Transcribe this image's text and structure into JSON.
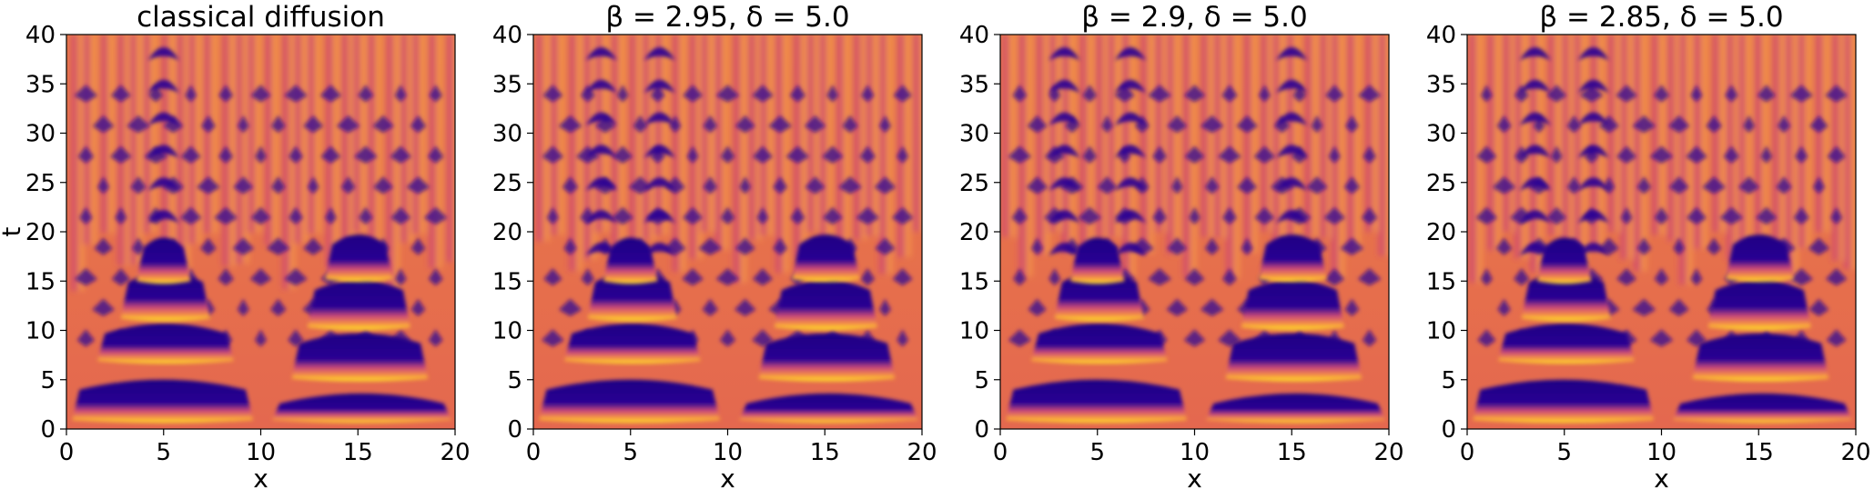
{
  "chart_data": [
    {
      "type": "heatmap",
      "title": "classical diffusion",
      "xlabel": "x",
      "ylabel": "t",
      "xlim": [
        0,
        20
      ],
      "ylim": [
        0,
        40
      ],
      "xticks": [
        0,
        5,
        10,
        15,
        20
      ],
      "yticks": [
        0,
        5,
        10,
        15,
        20,
        25,
        30,
        35,
        40
      ],
      "colormap": "plasma",
      "colors": {
        "low": "#2a0593",
        "mid": "#e86a47",
        "high": "#fde725"
      },
      "lumps": [
        {
          "x0": 5,
          "x1": 15,
          "y0": 20,
          "y1": 40
        },
        {
          "x0": 5,
          "x1": 15,
          "y0": 15,
          "y1": 20
        },
        {
          "x0": 5,
          "x1": 15,
          "y0": 10,
          "y1": 15
        },
        {
          "x0": 5,
          "x1": 15,
          "y0": 5,
          "y1": 10
        },
        {
          "x0": 5,
          "x1": 15,
          "y0": 0,
          "y1": 5
        }
      ]
    },
    {
      "type": "heatmap",
      "title": "β = 2.95, δ = 5.0",
      "xlabel": "x",
      "ylabel": "",
      "xlim": [
        0,
        20
      ],
      "ylim": [
        0,
        40
      ],
      "xticks": [
        0,
        5,
        10,
        15,
        20
      ],
      "yticks": [
        0,
        5,
        10,
        15,
        20,
        25,
        30,
        35,
        40
      ],
      "colormap": "plasma"
    },
    {
      "type": "heatmap",
      "title": "β = 2.9, δ = 5.0",
      "xlabel": "x",
      "ylabel": "",
      "xlim": [
        0,
        20
      ],
      "ylim": [
        0,
        40
      ],
      "xticks": [
        0,
        5,
        10,
        15,
        20
      ],
      "yticks": [
        0,
        5,
        10,
        15,
        20,
        25,
        30,
        35,
        40
      ],
      "colormap": "plasma"
    },
    {
      "type": "heatmap",
      "title": "β = 2.85, δ = 5.0",
      "xlabel": "x",
      "ylabel": "",
      "xlim": [
        0,
        20
      ],
      "ylim": [
        0,
        40
      ],
      "xticks": [
        0,
        5,
        10,
        15,
        20
      ],
      "yticks": [
        0,
        5,
        10,
        15,
        20,
        25,
        30,
        35,
        40
      ],
      "colormap": "plasma"
    }
  ]
}
